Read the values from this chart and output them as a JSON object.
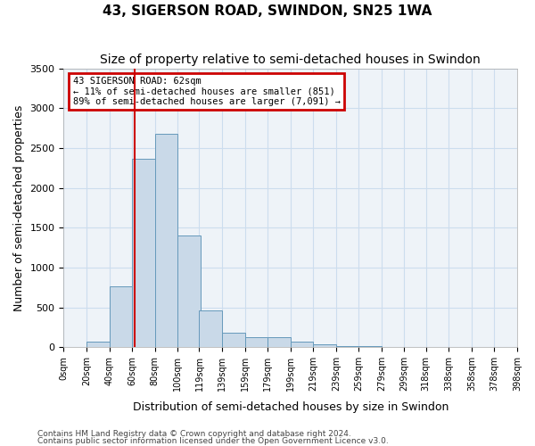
{
  "title": "43, SIGERSON ROAD, SWINDON, SN25 1WA",
  "subtitle": "Size of property relative to semi-detached houses in Swindon",
  "xlabel": "Distribution of semi-detached houses by size in Swindon",
  "ylabel": "Number of semi-detached properties",
  "footnote1": "Contains HM Land Registry data © Crown copyright and database right 2024.",
  "footnote2": "Contains public sector information licensed under the Open Government Licence v3.0.",
  "annotation_line1": "43 SIGERSON ROAD: 62sqm",
  "annotation_line2": "← 11% of semi-detached houses are smaller (851)",
  "annotation_line3": "89% of semi-detached houses are larger (7,091) →",
  "property_size": 62,
  "bin_starts": [
    0,
    20,
    40,
    60,
    80,
    100,
    119,
    139,
    159,
    179,
    199,
    219,
    239,
    259,
    279,
    299,
    318,
    338,
    358,
    378
  ],
  "bin_labels": [
    "0sqm",
    "20sqm",
    "40sqm",
    "60sqm",
    "80sqm",
    "100sqm",
    "119sqm",
    "139sqm",
    "159sqm",
    "179sqm",
    "199sqm",
    "219sqm",
    "239sqm",
    "259sqm",
    "279sqm",
    "299sqm",
    "318sqm",
    "338sqm",
    "358sqm",
    "378sqm",
    "398sqm"
  ],
  "counts": [
    5,
    75,
    760,
    2360,
    2680,
    1400,
    460,
    185,
    130,
    125,
    65,
    40,
    20,
    10,
    5,
    5,
    3,
    2,
    1,
    1
  ],
  "bar_color": "#c9d9e8",
  "bar_edge_color": "#6699bb",
  "vline_color": "#cc0000",
  "vline_x": 62,
  "ylim": [
    0,
    3500
  ],
  "yticks": [
    0,
    500,
    1000,
    1500,
    2000,
    2500,
    3000,
    3500
  ],
  "grid_color": "#ccddee",
  "annotation_box_color": "#cc0000",
  "bg_color": "#eef3f8",
  "title_fontsize": 11,
  "subtitle_fontsize": 10,
  "xlabel_fontsize": 9,
  "ylabel_fontsize": 9
}
